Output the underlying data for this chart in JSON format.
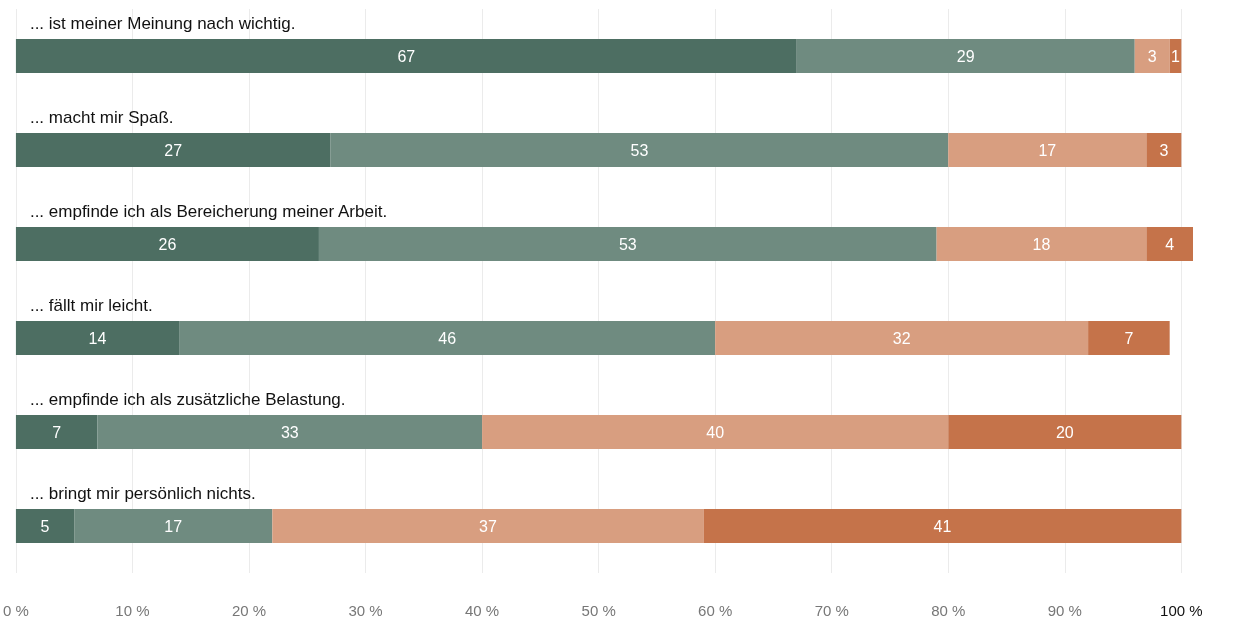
{
  "chart_data": {
    "type": "bar",
    "orientation": "horizontal",
    "stacked": true,
    "data_labels": true,
    "grid": "x",
    "categories": [
      "... ist meiner Meinung nach wichtig.",
      "... macht mir Spaß.",
      "... empfinde ich als Bereicherung meiner Arbeit.",
      "... fällt mir leicht.",
      "... empfinde ich als zusätzliche Belastung.",
      "... bringt mir persönlich nichts."
    ],
    "series": [
      {
        "color": "#4d6e62",
        "values": [
          67,
          27,
          26,
          14,
          7,
          5
        ]
      },
      {
        "color": "#6f8b80",
        "values": [
          29,
          53,
          53,
          46,
          33,
          17
        ]
      },
      {
        "color": "#d89e80",
        "values": [
          3,
          17,
          18,
          32,
          40,
          37
        ]
      },
      {
        "color": "#c5734a",
        "values": [
          1,
          3,
          4,
          7,
          20,
          41
        ]
      }
    ],
    "xlim": [
      0,
      101
    ],
    "xticks": [
      {
        "value": 0,
        "label": "0 %"
      },
      {
        "value": 10,
        "label": "10 %"
      },
      {
        "value": 20,
        "label": "20 %"
      },
      {
        "value": 30,
        "label": "30 %"
      },
      {
        "value": 40,
        "label": "40 %"
      },
      {
        "value": 50,
        "label": "50 %"
      },
      {
        "value": 60,
        "label": "60 %"
      },
      {
        "value": 70,
        "label": "70 %"
      },
      {
        "value": 80,
        "label": "80 %"
      },
      {
        "value": 90,
        "label": "90 %"
      },
      {
        "value": 100,
        "label": "100 %"
      }
    ]
  }
}
